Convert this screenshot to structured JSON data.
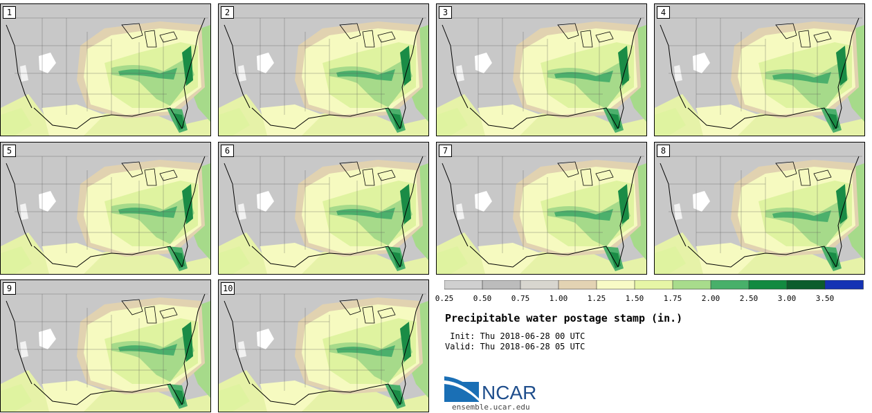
{
  "panels": [
    {
      "label": "1"
    },
    {
      "label": "2"
    },
    {
      "label": "3"
    },
    {
      "label": "4"
    },
    {
      "label": "5"
    },
    {
      "label": "6"
    },
    {
      "label": "7"
    },
    {
      "label": "8"
    },
    {
      "label": "9"
    },
    {
      "label": "10"
    }
  ],
  "colorbar": {
    "colors": [
      "#d0d0d0",
      "#bcbcbc",
      "#d8d6cf",
      "#e3d3b3",
      "#f8fbc6",
      "#e6f6a6",
      "#a8dc8c",
      "#48b06a",
      "#128a40",
      "#0c5c2c",
      "#1432b4"
    ],
    "labels": [
      "0.25",
      "0.50",
      "0.75",
      "1.00",
      "1.25",
      "1.50",
      "1.75",
      "2.00",
      "2.50",
      "3.00",
      "3.50"
    ]
  },
  "title": "Precipitable water postage stamp (in.)",
  "init_line": " Init: Thu 2018-06-28 00 UTC",
  "valid_line": "Valid: Thu 2018-06-28 05 UTC",
  "logo_text": "NCAR",
  "url": "ensemble.ucar.edu"
}
